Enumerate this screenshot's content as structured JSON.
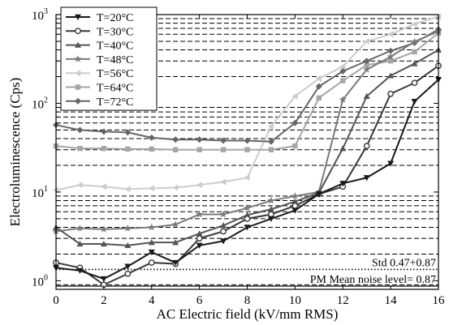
{
  "chart_data": {
    "type": "line",
    "xlabel": "AC Electric field (kV/mm RMS)",
    "ylabel": "Electroluminescence (Cps)",
    "x_ticks": [
      0,
      2,
      4,
      6,
      8,
      10,
      12,
      14,
      16
    ],
    "y_scale": "log",
    "y_ticks": [
      {
        "value": 1,
        "base": "10",
        "exp": "0"
      },
      {
        "value": 10,
        "base": "10",
        "exp": "1"
      },
      {
        "value": 100,
        "base": "10",
        "exp": "2"
      },
      {
        "value": 1000,
        "base": "10",
        "exp": "3"
      }
    ],
    "xlim": [
      0,
      16
    ],
    "ylim": [
      0.8,
      1000
    ],
    "grid": "dashed horizontal at minor decades",
    "legend_position": "top-left",
    "series": [
      {
        "name": "T=20°C",
        "color": "#1a1a1a",
        "marker": "triangle-down",
        "x": [
          0,
          1,
          2,
          3,
          4,
          5,
          6,
          7,
          8,
          9,
          10,
          11,
          12,
          13,
          14,
          15,
          16
        ],
        "y": [
          1.4,
          1.3,
          1.05,
          1.45,
          2.1,
          1.6,
          2.5,
          2.8,
          4.0,
          5.0,
          6.2,
          9.5,
          12.5,
          14.5,
          21,
          105,
          185
        ]
      },
      {
        "name": "T=30°C",
        "color": "#383838",
        "marker": "circle",
        "x": [
          0,
          1,
          2,
          3,
          4,
          5,
          6,
          7,
          8,
          9,
          10,
          11,
          12,
          13,
          14,
          15,
          16
        ],
        "y": [
          1.6,
          1.4,
          0.9,
          1.2,
          1.6,
          1.55,
          3.0,
          3.6,
          5.0,
          5.6,
          7.0,
          9.5,
          11.5,
          33,
          128,
          170,
          265
        ]
      },
      {
        "name": "T=40°C",
        "color": "#555555",
        "marker": "triangle-up",
        "x": [
          0,
          1,
          2,
          3,
          4,
          5,
          6,
          7,
          8,
          9,
          10,
          11,
          12,
          13,
          14,
          15,
          16
        ],
        "y": [
          4.0,
          2.6,
          2.6,
          2.5,
          2.7,
          2.7,
          3.4,
          4.2,
          5.5,
          6.4,
          7.8,
          9.8,
          31,
          120,
          205,
          280,
          400
        ]
      },
      {
        "name": "T=48°C",
        "color": "#7a7a7a",
        "marker": "star",
        "x": [
          0,
          1,
          2,
          3,
          4,
          5,
          6,
          7,
          8,
          9,
          10,
          11,
          12,
          13,
          14,
          15,
          16
        ],
        "y": [
          3.6,
          3.9,
          3.8,
          3.9,
          4.0,
          4.3,
          5.6,
          5.6,
          6.6,
          8.0,
          9.0,
          10,
          110,
          240,
          335,
          495,
          650
        ]
      },
      {
        "name": "T=56°C",
        "color": "#cccccc",
        "marker": "triangle-left",
        "x": [
          0,
          1,
          2,
          3,
          4,
          5,
          6,
          7,
          8,
          9,
          10,
          11,
          12,
          13,
          14,
          15,
          16
        ],
        "y": [
          10.5,
          12,
          11.5,
          10.8,
          11,
          11.2,
          12,
          13,
          14.5,
          55,
          120,
          190,
          260,
          500,
          600,
          780,
          950
        ]
      },
      {
        "name": "T=64°C",
        "color": "#a6a6a6",
        "marker": "square",
        "x": [
          0,
          1,
          2,
          3,
          4,
          5,
          6,
          7,
          8,
          9,
          10,
          11,
          12,
          13,
          14,
          15,
          16
        ],
        "y": [
          33,
          31,
          31,
          30.5,
          30.5,
          30,
          30,
          30,
          30,
          30,
          33,
          115,
          180,
          270,
          300,
          380,
          620
        ]
      },
      {
        "name": "T=72°C",
        "color": "#666666",
        "marker": "diamond",
        "x": [
          0,
          1,
          2,
          3,
          4,
          5,
          6,
          7,
          8,
          9,
          10,
          11,
          12,
          13,
          14,
          15,
          16
        ],
        "y": [
          57,
          50,
          48,
          47,
          41,
          39,
          39,
          38,
          38,
          37,
          60,
          155,
          230,
          300,
          390,
          480,
          680
        ]
      }
    ],
    "annotations": [
      {
        "text": "Std 0.47+0.87",
        "y": 1.34,
        "style": "dotted"
      },
      {
        "text": "PM Mean noise level= 0.87",
        "y": 0.87,
        "style": "solid"
      }
    ]
  }
}
